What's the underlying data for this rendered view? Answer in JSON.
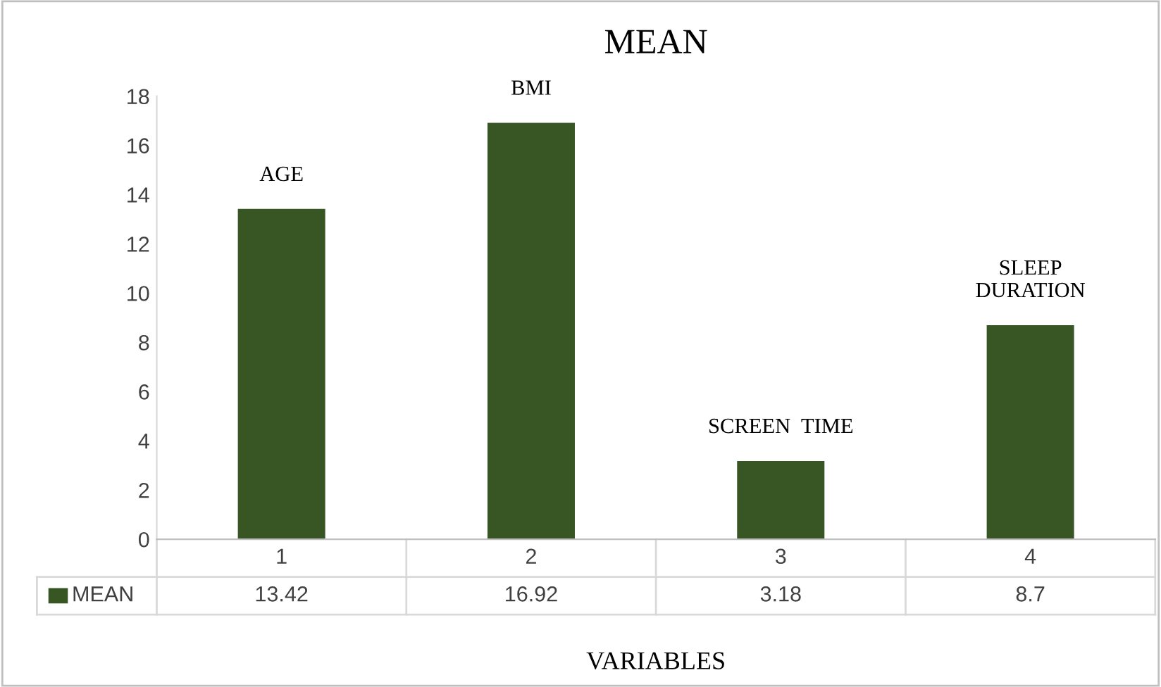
{
  "chart_data": {
    "type": "bar",
    "title": "MEAN",
    "xlabel": "VARIABLES",
    "categories": [
      "1",
      "2",
      "3",
      "4"
    ],
    "series": [
      {
        "name": "MEAN",
        "color": "#375623",
        "values": [
          13.42,
          16.92,
          3.18,
          8.7
        ]
      }
    ],
    "ylim": [
      0,
      18
    ],
    "yticks": [
      0,
      2,
      4,
      6,
      8,
      10,
      12,
      14,
      16,
      18
    ],
    "grid": false,
    "data_labels": true,
    "legend": "bottom",
    "annotations": [
      "AGE",
      "BMI",
      "SCREEN  TIME",
      "SLEEP\nDURATION"
    ]
  }
}
